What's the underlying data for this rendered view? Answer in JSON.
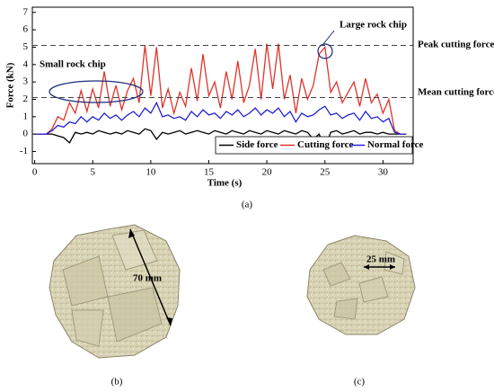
{
  "chart_data": {
    "type": "line",
    "x_label": "Time (s)",
    "y_label": "Force (kN)",
    "panel_label": "(a)",
    "x": [
      0,
      0.5,
      1,
      1.5,
      2,
      2.5,
      3,
      3.5,
      4,
      4.5,
      5,
      5.5,
      6,
      6.5,
      7,
      7.5,
      8,
      8.5,
      9,
      9.5,
      10,
      10.5,
      11,
      11.5,
      12,
      12.5,
      13,
      13.5,
      14,
      14.5,
      15,
      15.5,
      16,
      16.5,
      17,
      17.5,
      18,
      18.5,
      19,
      19.5,
      20,
      20.5,
      21,
      21.5,
      22,
      22.5,
      23,
      23.5,
      24,
      24.5,
      25,
      25.5,
      26,
      26.5,
      27,
      27.5,
      28,
      28.5,
      29,
      29.5,
      30,
      30.5,
      31,
      31.5,
      32
    ],
    "series": [
      {
        "name": "Side force",
        "color": "#000000",
        "values": [
          0,
          0,
          0,
          0,
          -0.1,
          -0.2,
          -0.5,
          0.1,
          0,
          0.1,
          0,
          0.2,
          0.1,
          0,
          0.1,
          0,
          0.2,
          0.1,
          0,
          0.3,
          0.2,
          -0.3,
          0.1,
          0,
          0.1,
          0.2,
          0,
          0.1,
          0.2,
          0.1,
          0,
          0.2,
          0.1,
          0,
          0.2,
          0.1,
          0,
          0.2,
          0.1,
          0,
          0.2,
          0.1,
          0,
          0.2,
          0.1,
          0,
          0.2,
          0.1,
          -0.3,
          0,
          -0.8,
          0.1,
          0.2,
          0,
          0.1,
          0.2,
          0,
          0.1,
          0.1,
          0,
          0.1,
          0,
          0,
          0,
          0
        ]
      },
      {
        "name": "Cutting force",
        "color": "#e0342c",
        "values": [
          0,
          0,
          0,
          0.3,
          1.0,
          0.8,
          1.8,
          1.2,
          2.5,
          1.3,
          2.6,
          1.5,
          3.6,
          1.6,
          2.8,
          1.4,
          2.5,
          3.2,
          1.8,
          5.1,
          2.2,
          5.0,
          1.5,
          2.6,
          1.2,
          2.4,
          1.6,
          3.8,
          1.9,
          4.6,
          2.2,
          3.0,
          1.5,
          3.6,
          2.0,
          4.2,
          1.8,
          2.8,
          4.9,
          2.0,
          5.2,
          2.6,
          5.2,
          2.0,
          3.4,
          1.2,
          3.2,
          2.0,
          2.8,
          4.6,
          5.0,
          2.4,
          3.0,
          1.8,
          2.4,
          3.0,
          1.6,
          3.2,
          1.8,
          2.3,
          1.2,
          2.0,
          0.2,
          0,
          0
        ]
      },
      {
        "name": "Normal force",
        "color": "#2323d2",
        "values": [
          0,
          0,
          0,
          0.2,
          0.5,
          0.4,
          0.7,
          0.6,
          1.0,
          0.7,
          1.0,
          0.8,
          1.2,
          0.9,
          1.1,
          0.8,
          1.1,
          1.3,
          1.0,
          1.5,
          1.2,
          1.8,
          1.0,
          1.1,
          0.9,
          1.0,
          0.8,
          1.3,
          1.0,
          1.4,
          1.1,
          1.2,
          0.9,
          1.3,
          1.1,
          1.4,
          1.0,
          1.2,
          1.5,
          1.1,
          1.4,
          1.2,
          1.5,
          1.0,
          1.3,
          0.7,
          1.2,
          1.0,
          1.1,
          1.4,
          1.6,
          1.1,
          1.2,
          0.9,
          1.1,
          1.2,
          0.8,
          1.3,
          0.9,
          1.0,
          0.7,
          0.9,
          0.1,
          0,
          0
        ]
      }
    ],
    "xlim": [
      -0.2,
      32.6
    ],
    "xticks": [
      0,
      5,
      10,
      15,
      20,
      25,
      30
    ],
    "ylim": [
      -1.7,
      7.3
    ],
    "yticks": [
      -1,
      0,
      1,
      2,
      3,
      4,
      5,
      6,
      7
    ],
    "reference_lines": [
      {
        "value": 5.1,
        "label": "Peak cutting force"
      },
      {
        "value": 2.1,
        "label": "Mean cutting force"
      }
    ],
    "annotations": [
      {
        "text": "Large rock chip"
      },
      {
        "text": "Small rock chip"
      }
    ],
    "legend": "lower right"
  },
  "photos": [
    {
      "label": "(b)",
      "scale": "70 mm"
    },
    {
      "label": "(c)",
      "scale": "25 mm"
    }
  ]
}
